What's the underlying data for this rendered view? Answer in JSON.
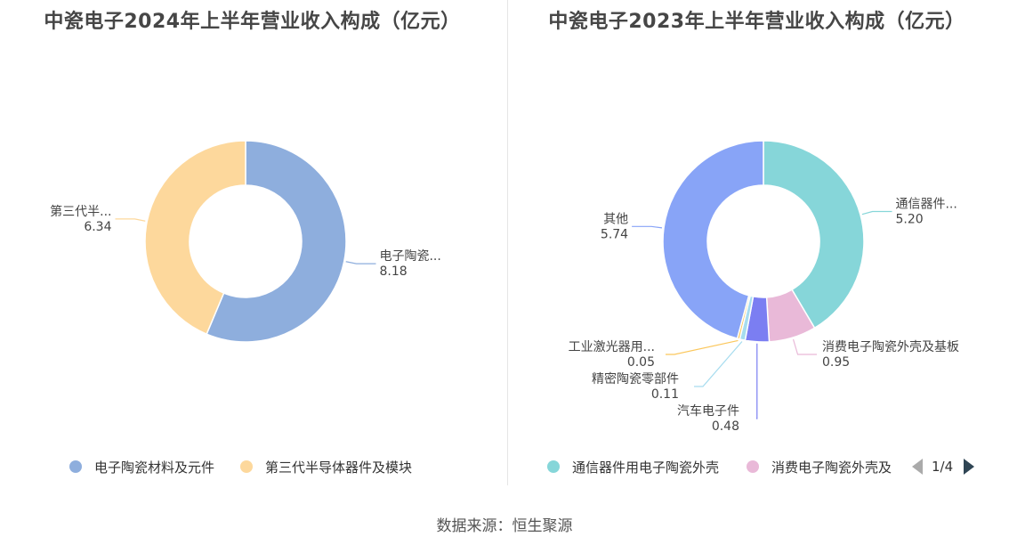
{
  "footer": {
    "source": "数据来源：恒生聚源"
  },
  "pager": {
    "text": "1/4"
  },
  "chart_data": [
    {
      "type": "pie",
      "title": "中瓷电子2024年上半年营业收入构成（亿元）",
      "series": [
        {
          "name": "电子陶瓷材料及元件",
          "short_label": "电子陶瓷...",
          "value": 8.18,
          "value_label": "8.18",
          "color": "#8eaedd"
        },
        {
          "name": "第三代半导体器件及模块",
          "short_label": "第三代半...",
          "value": 6.34,
          "value_label": "6.34",
          "color": "#fdd89c"
        }
      ],
      "legend": [
        "电子陶瓷材料及元件",
        "第三代半导体器件及模块"
      ],
      "legend_position": "bottom"
    },
    {
      "type": "pie",
      "title": "中瓷电子2023年上半年营业收入构成（亿元）",
      "series": [
        {
          "name": "通信器件用电子陶瓷外壳",
          "short_label": "通信器件...",
          "value": 5.2,
          "value_label": "5.20",
          "color": "#86d6d9"
        },
        {
          "name": "消费电子陶瓷外壳及基板",
          "short_label": "消费电子陶瓷外壳及基板",
          "value": 0.95,
          "value_label": "0.95",
          "color": "#e9b9d8"
        },
        {
          "name": "汽车电子件",
          "short_label": "汽车电子件",
          "value": 0.48,
          "value_label": "0.48",
          "color": "#7b7ef2"
        },
        {
          "name": "精密陶瓷零部件",
          "short_label": "精密陶瓷零部件",
          "value": 0.11,
          "value_label": "0.11",
          "color": "#a6dcef"
        },
        {
          "name": "工业激光器用...",
          "short_label": "工业激光器用...",
          "value": 0.05,
          "value_label": "0.05",
          "color": "#fbc75c"
        },
        {
          "name": "其他",
          "short_label": "其他",
          "value": 5.74,
          "value_label": "5.74",
          "color": "#88a4f7"
        }
      ],
      "legend": [
        "通信器件用电子陶瓷外壳",
        "消费电子陶瓷外壳及"
      ],
      "legend_position": "bottom"
    }
  ]
}
